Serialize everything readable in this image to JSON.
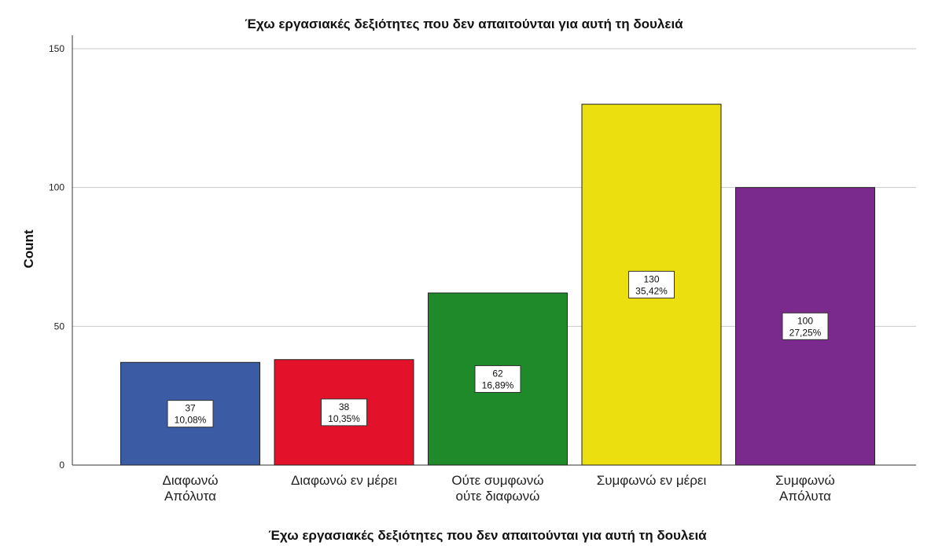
{
  "chart_data": {
    "type": "bar",
    "title": "Έχω εργασιακές δεξιότητες που δεν  απαιτούνται για αυτή τη δουλειά",
    "xlabel": "Έχω εργασιακές δεξιότητες που δεν  απαιτούνται για αυτή τη δουλειά",
    "ylabel": "Count",
    "ylim": [
      0,
      150
    ],
    "yticks": [
      "0",
      "50",
      "100",
      "150"
    ],
    "grid": true,
    "categories": [
      [
        "Διαφωνώ",
        "Απόλυτα"
      ],
      [
        "Διαφωνώ εν μέρει"
      ],
      [
        "Ούτε συμφωνώ",
        "ούτε διαφωνώ"
      ],
      [
        "Συμφωνώ εν μέρει"
      ],
      [
        "Συμφωνώ",
        "Απόλυτα"
      ]
    ],
    "values": [
      37,
      38,
      62,
      130,
      100
    ],
    "percents": [
      "10,08%",
      "10,35%",
      "16,89%",
      "35,42%",
      "27,25%"
    ],
    "colors": [
      "#3b5ba5",
      "#e4112a",
      "#1e8a2a",
      "#ecdf10",
      "#7a2a8c"
    ]
  }
}
